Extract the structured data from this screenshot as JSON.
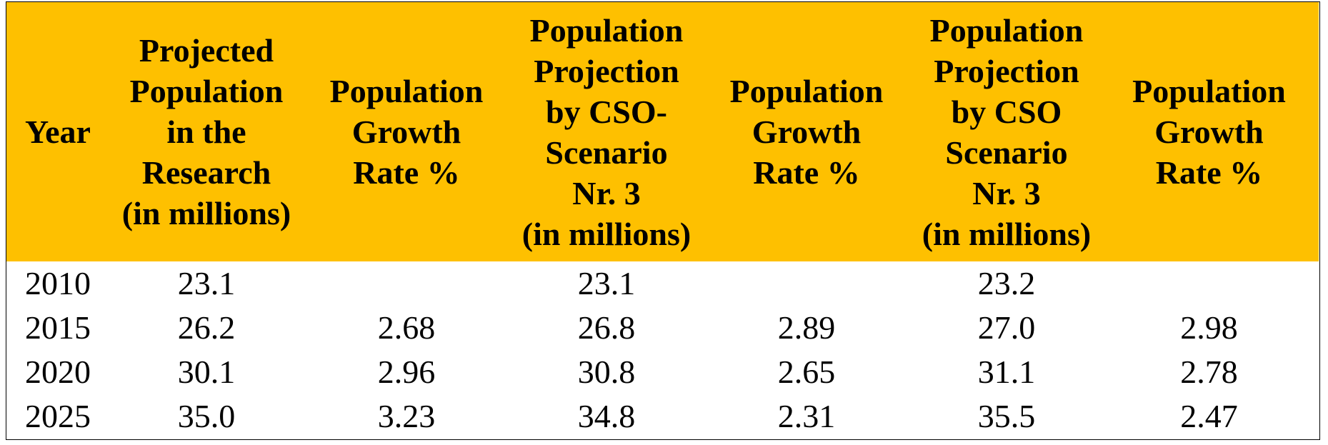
{
  "table": {
    "headers": [
      "Year",
      "Projected\nPopulation\nin the\nResearch\n(in millions)",
      "Population\nGrowth\nRate %",
      "Population\nProjection\nby CSO-\nScenario\nNr. 3\n(in millions)",
      "Population\nGrowth\nRate %",
      "Population\nProjection\nby CSO\nScenario\nNr. 3\n(in millions)",
      "Population\nGrowth\nRate %"
    ],
    "rows": [
      [
        "2010",
        "23.1",
        "",
        "23.1",
        "",
        "23.2",
        ""
      ],
      [
        "2015",
        "26.2",
        "2.68",
        "26.8",
        "2.89",
        "27.0",
        "2.98"
      ],
      [
        "2020",
        "30.1",
        "2.96",
        "30.8",
        "2.65",
        "31.1",
        "2.78"
      ],
      [
        "2025",
        "35.0",
        "3.23",
        "34.8",
        "2.31",
        "35.5",
        "2.47"
      ]
    ]
  },
  "colors": {
    "header_background": "#fec000",
    "text": "#000000",
    "border": "#000000"
  }
}
